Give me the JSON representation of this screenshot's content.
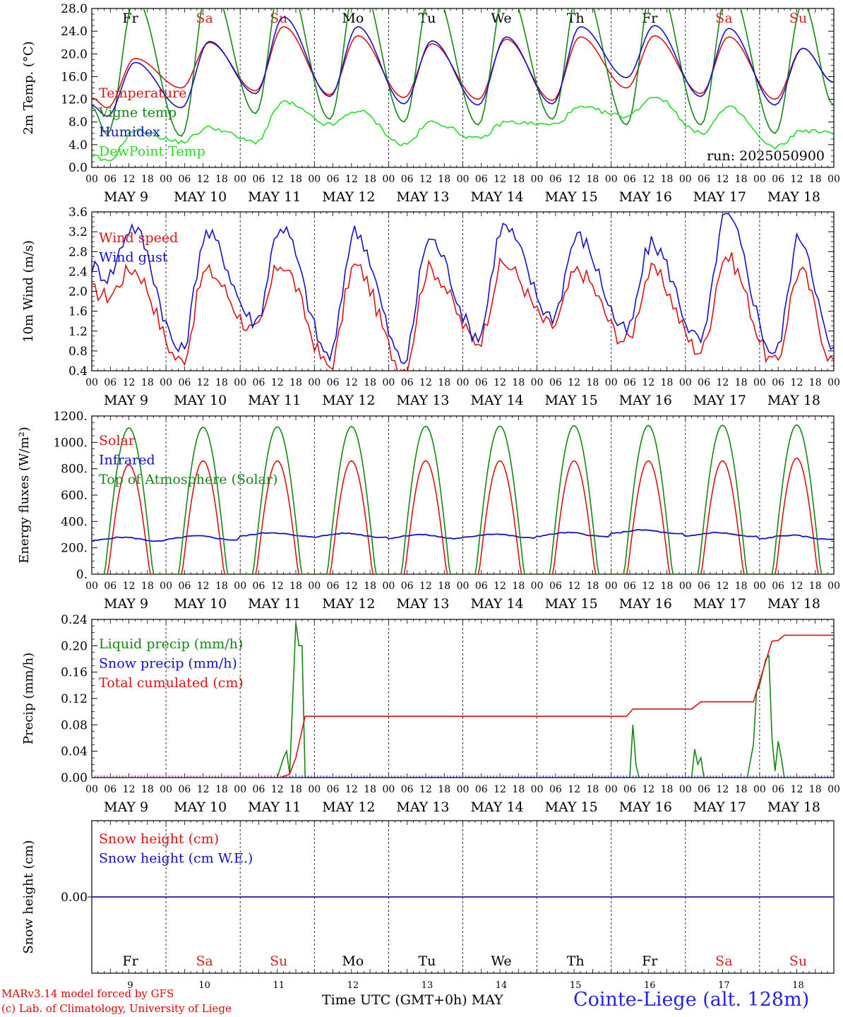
{
  "colors": {
    "red": "#dd1111",
    "green": "#118811",
    "blue": "#1111cc",
    "lightgreen": "#22dd22",
    "weekend": "#e02020"
  },
  "footer": {
    "credit_line1": "MARv3.14 model forced by GFS",
    "credit_line2": "(c) Lab. of Climatology, University of Liege",
    "xtitle": "Time UTC (GMT+0h)",
    "month": "MAY",
    "station": "Cointe-Liege (alt. 128m)"
  },
  "chart_data": [
    {
      "type": "line",
      "id": "temp",
      "ylabel": "2m Temp. (°C)",
      "ylim": [
        0,
        28
      ],
      "yticks": [
        "0.0",
        "4.0",
        "8.0",
        "12.0",
        "16.0",
        "20.0",
        "24.0",
        "28.0"
      ],
      "annotation": "run: 2025050900",
      "series": [
        {
          "name": "Temperature",
          "color": "red",
          "min": [
            10.5,
            14.0,
            13.5,
            12.8,
            12.3,
            12.0,
            11.8,
            14.0,
            13.0,
            12.0
          ],
          "max": [
            19.2,
            22.0,
            24.8,
            23.2,
            21.8,
            22.6,
            23.0,
            23.2,
            23.0,
            21.0
          ],
          "end": 15.0
        },
        {
          "name": "Vigne temp",
          "color": "green",
          "min": [
            5.8,
            5.5,
            9.5,
            8.5,
            8.0,
            7.5,
            8.5,
            7.5,
            7.5,
            6.0
          ],
          "max": [
            30.0,
            33.0,
            35.0,
            34.0,
            32.0,
            32.0,
            33.0,
            34.0,
            32.0,
            29.0
          ],
          "end": 11.0
        },
        {
          "name": "Humidex",
          "color": "blue",
          "min": [
            9.0,
            10.5,
            13.0,
            12.5,
            11.2,
            11.0,
            11.2,
            15.8,
            12.5,
            11.0
          ],
          "max": [
            18.5,
            22.2,
            26.5,
            24.8,
            22.3,
            23.0,
            24.8,
            25.0,
            24.5,
            21.0
          ],
          "end": 15.0
        },
        {
          "name": "DewPoint Temp",
          "color": "lightgreen",
          "min": [
            1.0,
            4.5,
            4.5,
            7.5,
            4.0,
            5.0,
            7.5,
            9.0,
            6.0,
            3.5
          ],
          "max": [
            6.5,
            7.0,
            11.5,
            10.0,
            8.0,
            8.0,
            10.5,
            12.5,
            10.5,
            6.5
          ],
          "end": 6.0
        }
      ]
    },
    {
      "type": "line",
      "id": "wind",
      "ylabel": "10m Wind (m/s)",
      "ylim": [
        0.4,
        3.6
      ],
      "yticks": [
        "0.4",
        "0.8",
        "1.2",
        "1.6",
        "2.0",
        "2.4",
        "2.8",
        "3.2",
        "3.6"
      ],
      "series": [
        {
          "name": "Wind speed",
          "color": "red",
          "min": [
            1.9,
            0.6,
            1.2,
            0.5,
            0.45,
            1.0,
            1.3,
            1.0,
            0.8,
            0.55
          ],
          "max": [
            2.45,
            2.4,
            2.55,
            2.5,
            2.45,
            2.55,
            2.4,
            2.4,
            2.7,
            2.4
          ],
          "end": 0.6
        },
        {
          "name": "Wind gust",
          "color": "blue",
          "min": [
            2.3,
            0.8,
            1.4,
            0.7,
            0.6,
            1.1,
            1.5,
            1.2,
            1.0,
            0.75
          ],
          "max": [
            3.3,
            3.15,
            3.3,
            3.2,
            3.05,
            3.3,
            3.1,
            2.95,
            3.5,
            3.1
          ],
          "end": 0.8
        }
      ]
    },
    {
      "type": "line",
      "id": "energy",
      "ylabel": "Energy fluxes (W/m²)",
      "ylim": [
        0,
        1200
      ],
      "yticks": [
        "0.",
        "200.",
        "400.",
        "600.",
        "800.",
        "1000.",
        "1200."
      ],
      "series": [
        {
          "name": "Solar",
          "color": "red",
          "daily_peak": [
            830,
            860,
            860,
            860,
            860,
            860,
            860,
            860,
            860,
            880
          ]
        },
        {
          "name": "Infrared",
          "color": "blue",
          "daily_mean": [
            265,
            275,
            300,
            295,
            285,
            290,
            300,
            320,
            300,
            280
          ]
        },
        {
          "name": "Top of Atmosphere (Solar)",
          "color": "green",
          "daily_peak": [
            1110,
            1115,
            1118,
            1120,
            1122,
            1124,
            1126,
            1128,
            1130,
            1132
          ]
        }
      ]
    },
    {
      "type": "line",
      "id": "precip",
      "ylabel": "Precip (mm/h)",
      "ylim": [
        0,
        0.24
      ],
      "yticks": [
        "0.00",
        "0.04",
        "0.08",
        "0.12",
        "0.16",
        "0.20",
        "0.24"
      ],
      "series": [
        {
          "name": "Liquid precip (mm/h)",
          "color": "green",
          "points": [
            [
              60,
              0
            ],
            [
              62,
              0.03
            ],
            [
              63,
              0.04
            ],
            [
              64,
              0.005
            ],
            [
              65,
              0.12
            ],
            [
              66,
              0.235
            ],
            [
              67,
              0.2
            ],
            [
              68,
              0.2
            ],
            [
              69,
              0
            ],
            [
              174,
              0
            ],
            [
              175,
              0.08
            ],
            [
              176,
              0.02
            ],
            [
              177,
              0
            ],
            [
              194,
              0
            ],
            [
              195,
              0.043
            ],
            [
              196,
              0.02
            ],
            [
              197,
              0.03
            ],
            [
              198,
              0
            ],
            [
              212,
              0
            ],
            [
              214,
              0.05
            ],
            [
              215,
              0.13
            ],
            [
              216,
              0.14
            ],
            [
              218,
              0.18
            ],
            [
              219,
              0.185
            ],
            [
              220,
              0.06
            ],
            [
              221,
              0.01
            ],
            [
              222,
              0.055
            ],
            [
              223,
              0.03
            ],
            [
              224,
              0
            ]
          ]
        },
        {
          "name": "Snow precip (mm/h)",
          "color": "blue",
          "points": [
            [
              0,
              0
            ],
            [
              240,
              0
            ]
          ]
        },
        {
          "name": "Total cumulated (cm)",
          "color": "red",
          "points": [
            [
              0,
              0
            ],
            [
              61,
              0
            ],
            [
              64,
              0.005
            ],
            [
              66,
              0.03
            ],
            [
              69,
              0.093
            ],
            [
              173,
              0.093
            ],
            [
              175,
              0.104
            ],
            [
              194,
              0.104
            ],
            [
              197,
              0.115
            ],
            [
              214,
              0.115
            ],
            [
              220,
              0.207
            ],
            [
              222,
              0.208
            ],
            [
              224,
              0.216
            ],
            [
              240,
              0.216
            ]
          ]
        }
      ]
    },
    {
      "type": "line",
      "id": "snow",
      "ylabel": "Snow height (cm)",
      "ylim": [
        -1,
        1
      ],
      "yticks": [
        "0.00"
      ],
      "series": [
        {
          "name": "Snow height (cm)",
          "color": "red",
          "value": 0.0
        },
        {
          "name": "Snow height (cm W.E.)",
          "color": "blue",
          "value": 0.0
        }
      ]
    }
  ],
  "days": [
    {
      "date": "9",
      "label": "MAY  9",
      "weekday": "Fr",
      "weekend": false
    },
    {
      "date": "10",
      "label": "MAY 10",
      "weekday": "Sa",
      "weekend": true
    },
    {
      "date": "11",
      "label": "MAY 11",
      "weekday": "Su",
      "weekend": true
    },
    {
      "date": "12",
      "label": "MAY 12",
      "weekday": "Mo",
      "weekend": false
    },
    {
      "date": "13",
      "label": "MAY 13",
      "weekday": "Tu",
      "weekend": false
    },
    {
      "date": "14",
      "label": "MAY 14",
      "weekday": "We",
      "weekend": false
    },
    {
      "date": "15",
      "label": "MAY 15",
      "weekday": "Th",
      "weekend": false
    },
    {
      "date": "16",
      "label": "MAY 16",
      "weekday": "Fr",
      "weekend": false
    },
    {
      "date": "17",
      "label": "MAY 17",
      "weekday": "Sa",
      "weekend": true
    },
    {
      "date": "18",
      "label": "MAY 18",
      "weekday": "Su",
      "weekend": true
    }
  ],
  "hour_labels": [
    "00",
    "06",
    "12",
    "18"
  ]
}
